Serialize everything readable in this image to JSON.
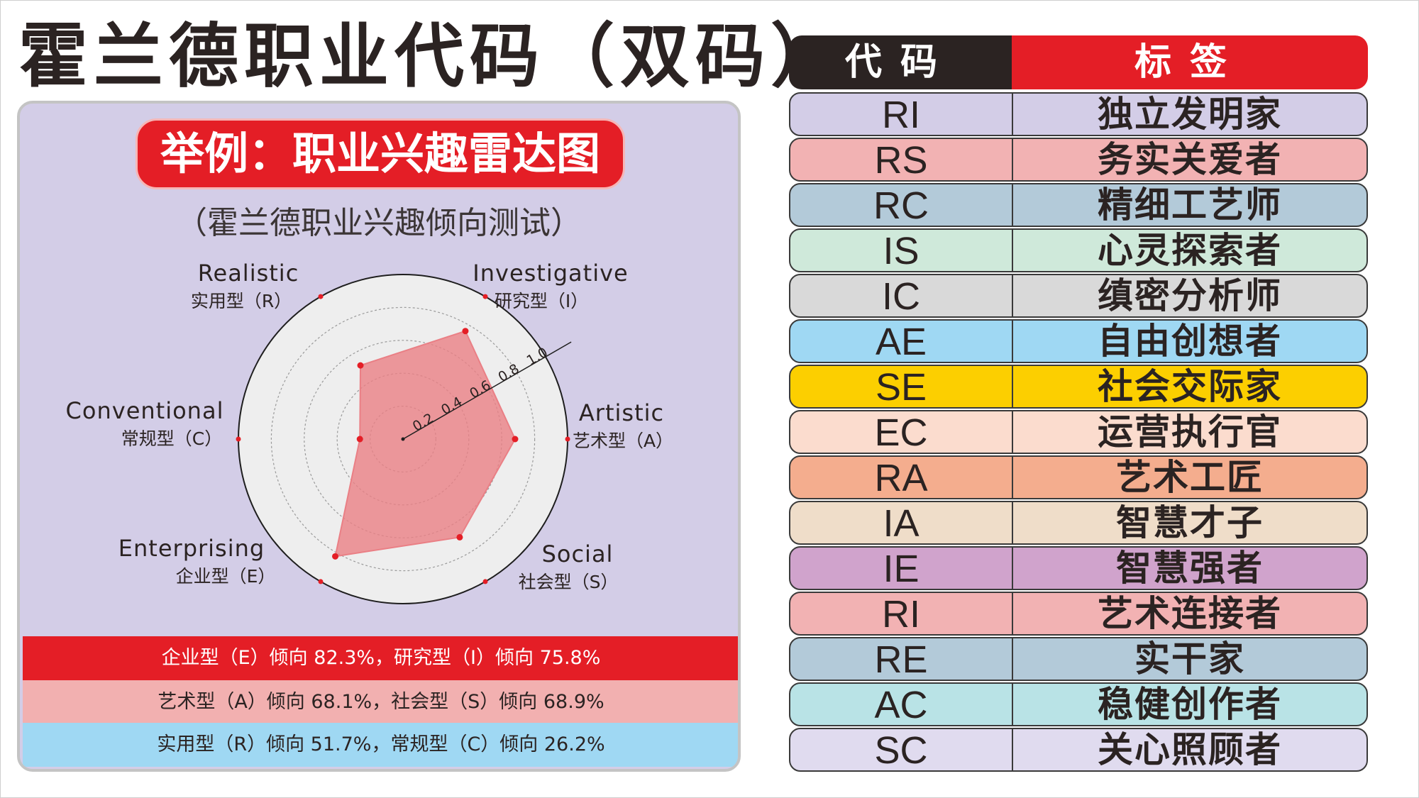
{
  "title": "霍兰德职业代码（双码）",
  "example_banner": "举例：职业兴趣雷达图",
  "subtitle": "（霍兰德职业兴趣倾向测试）",
  "chart_data": {
    "type": "radar",
    "axes": [
      {
        "en": "Realistic",
        "cn": "实用型（R）",
        "value": 0.517
      },
      {
        "en": "Investigative",
        "cn": "研究型（I）",
        "value": 0.758
      },
      {
        "en": "Artistic",
        "cn": "艺术型（A）",
        "value": 0.681
      },
      {
        "en": "Social",
        "cn": "社会型（S）",
        "value": 0.689
      },
      {
        "en": "Enterprising",
        "cn": "企业型（E）",
        "value": 0.823
      },
      {
        "en": "Conventional",
        "cn": "常规型（C）",
        "value": 0.262
      }
    ],
    "radial_ticks": [
      "0.2",
      "0.4",
      "0.6",
      "0.8",
      "1.0"
    ],
    "rlim": [
      0,
      1.0
    ],
    "fill_color": "#ea7f85",
    "point_color": "#e41e26"
  },
  "stats": [
    "企业型（E）倾向 82.3%，研究型（I）倾向 75.8%",
    "艺术型（A）倾向 68.1%，社会型（S）倾向 68.9%",
    "实用型（R）倾向 51.7%，常规型（C）倾向 26.2%"
  ],
  "table": {
    "header_code": "代码",
    "header_label": "标签",
    "rows": [
      {
        "code": "RI",
        "label": "独立发明家",
        "color": "#d3cde7"
      },
      {
        "code": "RS",
        "label": "务实关爱者",
        "color": "#f2b2b3"
      },
      {
        "code": "RC",
        "label": "精细工艺师",
        "color": "#b3cad9"
      },
      {
        "code": "IS",
        "label": "心灵探索者",
        "color": "#cfe9da"
      },
      {
        "code": "IC",
        "label": "缜密分析师",
        "color": "#d9d9d9"
      },
      {
        "code": "AE",
        "label": "自由创想者",
        "color": "#9fd8f3"
      },
      {
        "code": "SE",
        "label": "社会交际家",
        "color": "#fccf00"
      },
      {
        "code": "EC",
        "label": "运营执行官",
        "color": "#fbdcce"
      },
      {
        "code": "RA",
        "label": "艺术工匠",
        "color": "#f4ad8e"
      },
      {
        "code": "IA",
        "label": "智慧才子",
        "color": "#efddc9"
      },
      {
        "code": "IE",
        "label": "智慧强者",
        "color": "#d0a3cc"
      },
      {
        "code": "RI",
        "label": "艺术连接者",
        "color": "#f2b2b3"
      },
      {
        "code": "RE",
        "label": "实干家",
        "color": "#b3cad9"
      },
      {
        "code": "AC",
        "label": "稳健创作者",
        "color": "#b9e3e6"
      },
      {
        "code": "SC",
        "label": "关心照顾者",
        "color": "#e0dbef"
      }
    ]
  }
}
